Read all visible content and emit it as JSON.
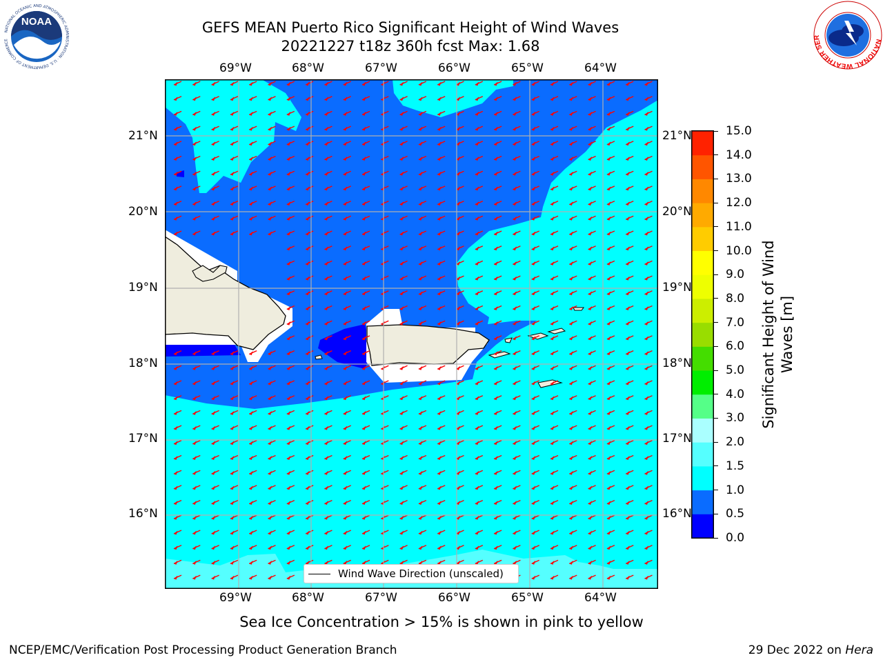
{
  "header": {
    "title_line1": "GEFS MEAN Puerto Rico Significant Height of Wind Waves",
    "title_line2": "20221227 t18z 360h fcst   Max: 1.68"
  },
  "logos": {
    "noaa_text": "NOAA",
    "noaa_ring_text": "NATIONAL OCEANIC AND ATMOSPHERIC ADMINISTRATION · U.S. DEPARTMENT OF COMMERCE",
    "nws_ring_text": "NATIONAL WEATHER SERVICE"
  },
  "map": {
    "lon_labels": [
      "69°W",
      "68°W",
      "67°W",
      "66°W",
      "65°W",
      "64°W"
    ],
    "lat_labels": [
      "21°N",
      "20°N",
      "19°N",
      "18°N",
      "17°N",
      "16°N"
    ],
    "arrow_direction": "toward southwest",
    "arrow_color": "#ff0000",
    "land_color": "#efedde",
    "legend_label": "Wind Wave Direction (unscaled)"
  },
  "colorbar": {
    "label": "Significant Height of Wind Waves [m]",
    "ticks": [
      "0.0",
      "0.5",
      "1.0",
      "1.5",
      "2.0",
      "3.0",
      "4.0",
      "5.0",
      "6.0",
      "7.0",
      "8.0",
      "9.0",
      "10.0",
      "11.0",
      "12.0",
      "13.0",
      "14.0",
      "15.0"
    ],
    "colors": [
      "#0000ff",
      "#0a6cff",
      "#00ffff",
      "#55ffff",
      "#aaffff",
      "#55ff88",
      "#00ee00",
      "#44dd00",
      "#99dd00",
      "#ccee00",
      "#eeff00",
      "#ffff00",
      "#ffcc00",
      "#ffaa00",
      "#ff8800",
      "#ff5500",
      "#ff2200"
    ]
  },
  "footer": {
    "subtitle": "Sea Ice Concentration > 15% is shown in pink to yellow",
    "credit": "NCEP/EMC/Verification Post Processing Product Generation Branch",
    "date": "29 Dec 2022 on",
    "host": "Hera"
  }
}
